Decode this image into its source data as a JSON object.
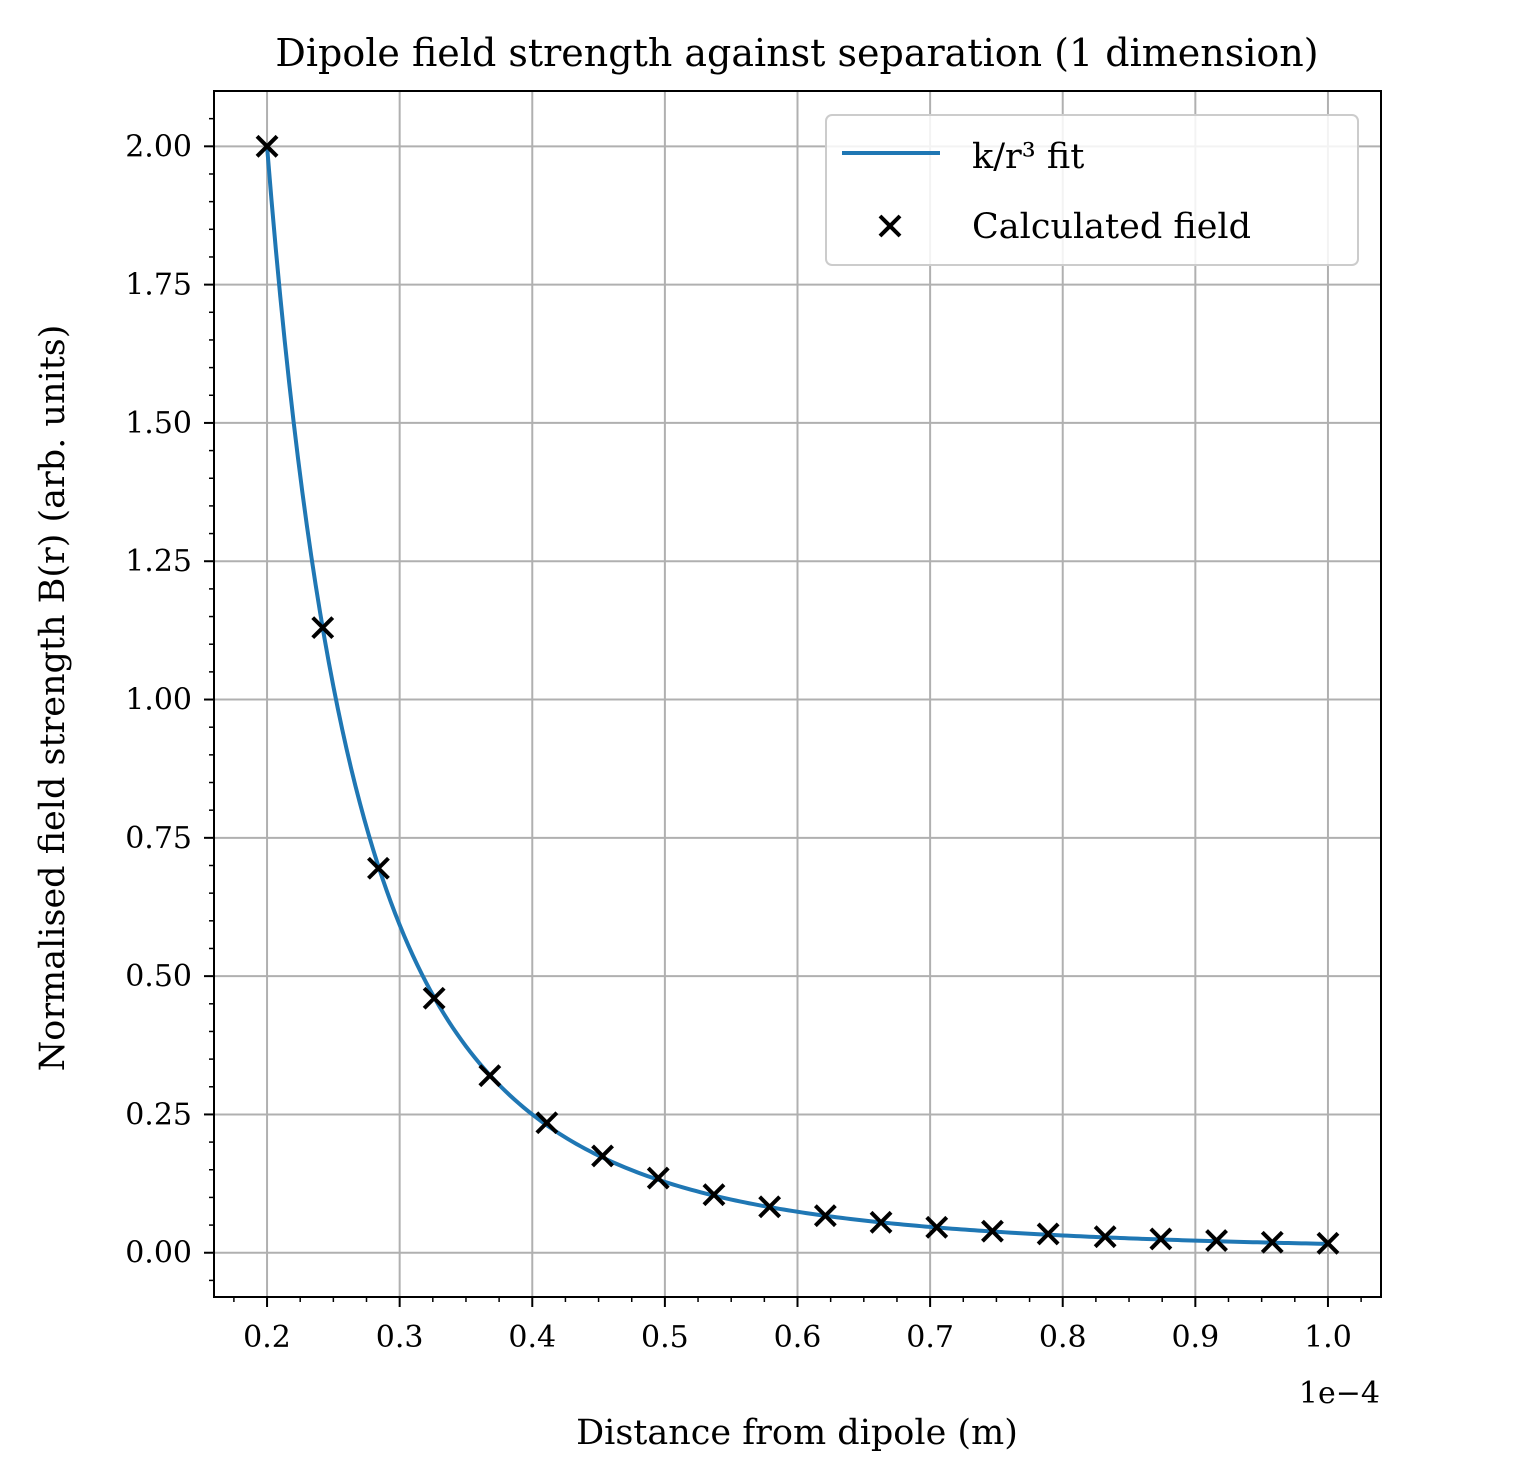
{
  "chart_data": {
    "type": "scatter",
    "title": "Dipole field strength against separation (1 dimension)",
    "xlabel": "Distance from dipole (m)",
    "ylabel": "Normalised field strength B(r) (arb. units)",
    "x_offset_text": "1e−4",
    "xlim": [
      0.16,
      1.04
    ],
    "ylim": [
      -0.08,
      2.1
    ],
    "x_ticks": [
      0.2,
      0.3,
      0.4,
      0.5,
      0.6,
      0.7,
      0.8,
      0.9,
      1.0
    ],
    "x_tick_labels": [
      "0.2",
      "0.3",
      "0.4",
      "0.5",
      "0.6",
      "0.7",
      "0.8",
      "0.9",
      "1.0"
    ],
    "y_ticks": [
      0.0,
      0.25,
      0.5,
      0.75,
      1.0,
      1.25,
      1.5,
      1.75,
      2.0
    ],
    "y_tick_labels": [
      "0.00",
      "0.25",
      "0.50",
      "0.75",
      "1.00",
      "1.25",
      "1.50",
      "1.75",
      "2.00"
    ],
    "grid": true,
    "legend_position": "top-right",
    "series": [
      {
        "name": "k/r³ fit",
        "type": "line",
        "color": "#1f77b4",
        "formula": "k/r^3",
        "k": 0.016,
        "x_range": [
          0.2,
          1.0
        ]
      },
      {
        "name": "Calculated field",
        "type": "scatter",
        "marker": "x",
        "color": "#000000",
        "x": [
          0.2,
          0.242,
          0.284,
          0.326,
          0.368,
          0.411,
          0.453,
          0.495,
          0.537,
          0.579,
          0.621,
          0.663,
          0.705,
          0.747,
          0.789,
          0.832,
          0.874,
          0.916,
          0.958,
          1.0
        ],
        "y": [
          2.0,
          1.13,
          0.695,
          0.46,
          0.32,
          0.235,
          0.175,
          0.135,
          0.105,
          0.083,
          0.067,
          0.055,
          0.046,
          0.039,
          0.034,
          0.029,
          0.025,
          0.022,
          0.019,
          0.017
        ]
      }
    ]
  }
}
